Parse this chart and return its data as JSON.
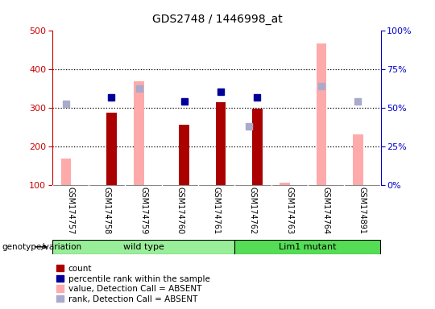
{
  "title": "GDS2748 / 1446998_at",
  "samples": [
    "GSM174757",
    "GSM174758",
    "GSM174759",
    "GSM174760",
    "GSM174761",
    "GSM174762",
    "GSM174763",
    "GSM174764",
    "GSM174891"
  ],
  "count_values": [
    null,
    288,
    null,
    258,
    315,
    298,
    null,
    null,
    null
  ],
  "percentile_rank": [
    null,
    328,
    null,
    318,
    342,
    328,
    null,
    null,
    null
  ],
  "value_absent": [
    170,
    null,
    370,
    null,
    null,
    null,
    108,
    468,
    232
  ],
  "rank_absent": [
    312,
    null,
    350,
    null,
    null,
    252,
    null,
    358,
    318
  ],
  "wild_type_indices": [
    0,
    1,
    2,
    3,
    4
  ],
  "lim1_mutant_indices": [
    5,
    6,
    7,
    8
  ],
  "ylim_left": [
    100,
    500
  ],
  "ylim_right": [
    0,
    100
  ],
  "yticks_left": [
    100,
    200,
    300,
    400,
    500
  ],
  "yticks_right": [
    0,
    25,
    50,
    75,
    100
  ],
  "count_color": "#aa0000",
  "percentile_color": "#000099",
  "value_absent_color": "#ffaaaa",
  "rank_absent_color": "#aaaacc",
  "wild_type_color": "#99ee99",
  "lim1_mutant_color": "#55dd55",
  "group_bar_bg": "#bbbbbb",
  "background_color": "#ffffff",
  "left_axis_color": "#cc0000",
  "right_axis_color": "#0000cc",
  "bar_width": 0.28
}
